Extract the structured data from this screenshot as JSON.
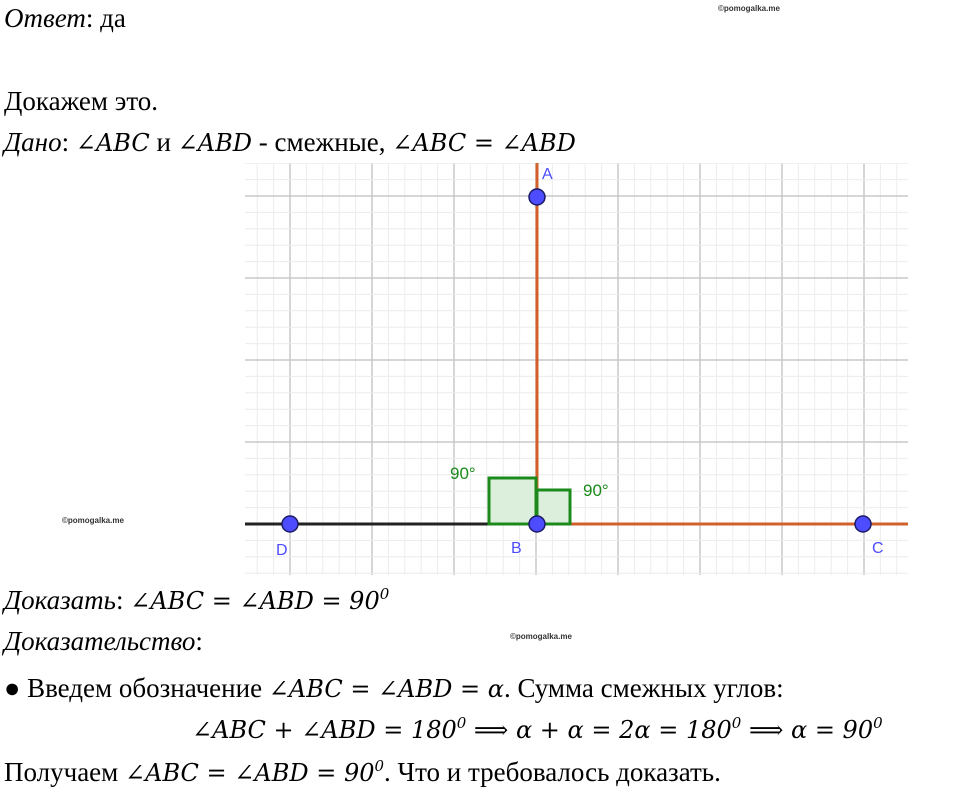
{
  "answer": {
    "label": "Ответ",
    "text": ": да"
  },
  "watermarks": [
    "©pomogalka.me",
    "©pomogalka.me",
    "©pomogalka.me"
  ],
  "intro": "Докажем это.",
  "given": {
    "label": "Дано",
    "parts": [
      ": ",
      "∠ABC",
      " и ",
      "∠ABD",
      " - смежные, ",
      "∠ABC = ∠ABD"
    ]
  },
  "diagram": {
    "points": [
      {
        "label": "A"
      },
      {
        "label": "B"
      },
      {
        "label": "D"
      },
      {
        "label": "C"
      }
    ],
    "angle_labels": [
      "90°",
      "90°"
    ]
  },
  "prove": {
    "label": "Доказать",
    "parts": [
      ": ",
      "∠ABC = ∠ABD = 90",
      "0"
    ]
  },
  "proof": {
    "label": "Доказательство",
    "text": ":"
  },
  "step": {
    "bullet": "●",
    "parts": [
      " Введем обозначение ",
      "∠ABC = ∠ABD = α",
      ". Сумма смежных углов:"
    ]
  },
  "formula": [
    "∠ABC + ∠ABD = 180",
    "0",
    " ⟹ α + α = 2α = 180",
    "0",
    " ⟹ α = 90",
    "0"
  ],
  "conclusion": [
    "Получаем ",
    "∠ABC = ∠ABD = 90",
    "0",
    ". Что и требовалось доказать."
  ]
}
